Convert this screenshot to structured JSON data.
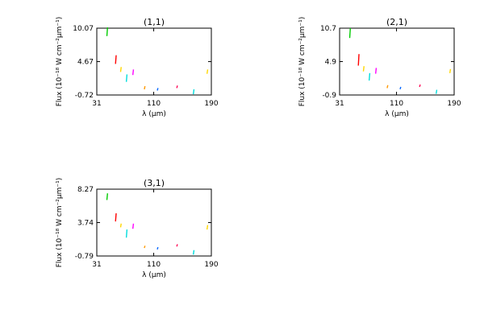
{
  "chart_data": [
    {
      "type": "scatter",
      "title": "(1,1)",
      "xlabel": "λ (μm)",
      "ylabel": "Flux (10⁻¹⁸ W cm⁻²μm⁻¹)",
      "xlim": [
        31,
        190
      ],
      "ylim": [
        -0.72,
        10.07
      ],
      "xticks": [
        "31",
        "110",
        "190"
      ],
      "yticks": [
        "10.07",
        "4.67",
        "-0.72"
      ],
      "grid": false,
      "points": [
        {
          "x": 45,
          "y": [
            8.8,
            10.2
          ],
          "color": "#00cc00"
        },
        {
          "x": 57,
          "y": [
            4.3,
            5.7
          ],
          "color": "#ff0000"
        },
        {
          "x": 64,
          "y": [
            3.0,
            3.8
          ],
          "color": "#ffd700"
        },
        {
          "x": 72,
          "y": [
            1.4,
            2.6
          ],
          "color": "#00dddd"
        },
        {
          "x": 81,
          "y": [
            2.5,
            3.4
          ],
          "color": "#ff00ff"
        },
        {
          "x": 97,
          "y": [
            0.2,
            0.7
          ],
          "color": "#ff9900"
        },
        {
          "x": 115,
          "y": [
            0.0,
            0.4
          ],
          "color": "#0066ff"
        },
        {
          "x": 142,
          "y": [
            0.4,
            0.8
          ],
          "color": "#ff0055"
        },
        {
          "x": 165,
          "y": [
            -0.6,
            0.2
          ],
          "color": "#00dddd"
        },
        {
          "x": 184,
          "y": [
            2.7,
            3.4
          ],
          "color": "#ffd700"
        }
      ]
    },
    {
      "type": "scatter",
      "title": "(2,1)",
      "xlabel": "λ (μm)",
      "ylabel": "Flux (10⁻¹⁸ W cm⁻²μm⁻¹)",
      "xlim": [
        31,
        190
      ],
      "ylim": [
        -0.9,
        10.7
      ],
      "xticks": [
        "31",
        "110",
        "190"
      ],
      "yticks": [
        "10.7",
        "4.9",
        "-0.9"
      ],
      "grid": false,
      "points": [
        {
          "x": 45,
          "y": [
            9.0,
            10.7
          ],
          "color": "#00cc00"
        },
        {
          "x": 57,
          "y": [
            4.2,
            6.2
          ],
          "color": "#ff0000"
        },
        {
          "x": 64,
          "y": [
            3.2,
            4.1
          ],
          "color": "#ffd700"
        },
        {
          "x": 72,
          "y": [
            1.6,
            2.9
          ],
          "color": "#00dddd"
        },
        {
          "x": 81,
          "y": [
            2.8,
            3.8
          ],
          "color": "#ff00ff"
        },
        {
          "x": 97,
          "y": [
            0.3,
            0.8
          ],
          "color": "#ff9900"
        },
        {
          "x": 115,
          "y": [
            0.1,
            0.5
          ],
          "color": "#0066ff"
        },
        {
          "x": 142,
          "y": [
            0.5,
            0.9
          ],
          "color": "#ff0055"
        },
        {
          "x": 165,
          "y": [
            -0.7,
            0.0
          ],
          "color": "#00dddd"
        },
        {
          "x": 184,
          "y": [
            2.9,
            3.6
          ],
          "color": "#ffd700"
        }
      ]
    },
    {
      "type": "scatter",
      "title": "(3,1)",
      "xlabel": "λ (μm)",
      "ylabel": "Flux (10⁻¹⁸ W cm⁻²μm⁻¹)",
      "xlim": [
        31,
        190
      ],
      "ylim": [
        -0.79,
        8.27
      ],
      "xticks": [
        "31",
        "110",
        "190"
      ],
      "yticks": [
        "8.27",
        "3.74",
        "-0.79"
      ],
      "grid": false,
      "points": [
        {
          "x": 45,
          "y": [
            6.8,
            7.7
          ],
          "color": "#00cc00"
        },
        {
          "x": 57,
          "y": [
            3.9,
            5.0
          ],
          "color": "#ff0000"
        },
        {
          "x": 64,
          "y": [
            3.1,
            3.6
          ],
          "color": "#ffd700"
        },
        {
          "x": 72,
          "y": [
            1.7,
            2.8
          ],
          "color": "#00dddd"
        },
        {
          "x": 81,
          "y": [
            2.9,
            3.6
          ],
          "color": "#ff00ff"
        },
        {
          "x": 97,
          "y": [
            0.3,
            0.6
          ],
          "color": "#ff9900"
        },
        {
          "x": 115,
          "y": [
            0.1,
            0.4
          ],
          "color": "#0066ff"
        },
        {
          "x": 142,
          "y": [
            0.5,
            0.8
          ],
          "color": "#ff0055"
        },
        {
          "x": 165,
          "y": [
            -0.6,
            0.0
          ],
          "color": "#00dddd"
        },
        {
          "x": 184,
          "y": [
            2.8,
            3.4
          ],
          "color": "#ffd700"
        }
      ]
    }
  ]
}
